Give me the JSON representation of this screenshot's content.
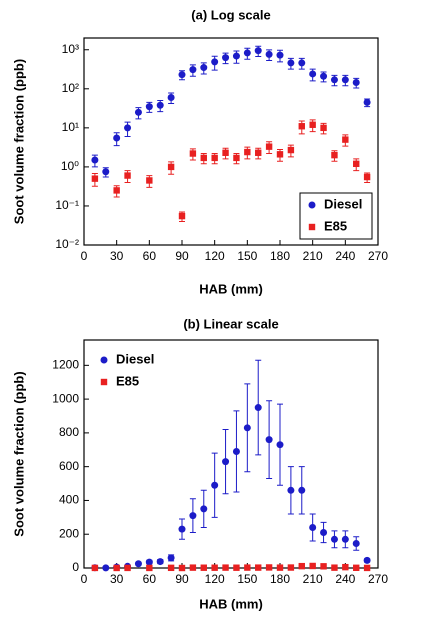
{
  "chart_data": [
    {
      "type": "scatter",
      "title": "(a) Log scale",
      "xlabel": "HAB (mm)",
      "ylabel": "Soot volume fraction (ppb)",
      "log_y": true,
      "legend": "lower right",
      "legend_box": true,
      "xlim": [
        0,
        270
      ],
      "xticks": [
        0,
        30,
        60,
        90,
        120,
        150,
        180,
        210,
        240,
        270
      ],
      "ylim": [
        0.01,
        2000
      ],
      "yticks": [
        {
          "value": 0.01,
          "label": "10⁻²"
        },
        {
          "value": 0.1,
          "label": "10⁻¹"
        },
        {
          "value": 1,
          "label": "10⁰"
        },
        {
          "value": 10,
          "label": "10¹"
        },
        {
          "value": 100,
          "label": "10²"
        },
        {
          "value": 1000,
          "label": "10³"
        }
      ],
      "series": [
        {
          "name": "Diesel",
          "color": "#1c1cc8",
          "marker": "circle",
          "x": [
            10,
            20,
            30,
            40,
            50,
            60,
            70,
            80,
            90,
            100,
            110,
            120,
            130,
            140,
            150,
            160,
            170,
            180,
            190,
            200,
            210,
            220,
            230,
            240,
            250,
            260
          ],
          "values": [
            1.5,
            0.75,
            5.5,
            10,
            25,
            35,
            38,
            60,
            230,
            310,
            350,
            490,
            630,
            690,
            830,
            950,
            760,
            730,
            460,
            460,
            240,
            210,
            170,
            170,
            145,
            45
          ],
          "errors": [
            0.5,
            0.2,
            2,
            4,
            8,
            10,
            12,
            18,
            60,
            100,
            110,
            190,
            190,
            240,
            260,
            280,
            230,
            240,
            140,
            140,
            80,
            60,
            50,
            50,
            40,
            10
          ]
        },
        {
          "name": "E85",
          "color": "#e82020",
          "marker": "square",
          "x": [
            10,
            30,
            40,
            60,
            80,
            90,
            100,
            110,
            120,
            130,
            140,
            150,
            160,
            170,
            180,
            190,
            200,
            210,
            220,
            230,
            240,
            250,
            260
          ],
          "values": [
            0.5,
            0.25,
            0.6,
            0.45,
            1.0,
            0.055,
            2.2,
            1.7,
            1.7,
            2.3,
            1.7,
            2.4,
            2.3,
            3.3,
            2.1,
            2.7,
            11,
            12,
            10,
            2,
            5,
            1.2,
            0.55
          ],
          "errors": [
            0.18,
            0.08,
            0.2,
            0.15,
            0.35,
            0.015,
            0.7,
            0.5,
            0.5,
            0.7,
            0.5,
            0.8,
            0.7,
            1.1,
            0.7,
            0.9,
            4,
            4,
            3,
            0.6,
            1.6,
            0.4,
            0.15
          ]
        }
      ]
    },
    {
      "type": "scatter",
      "title": "(b) Linear scale",
      "xlabel": "HAB (mm)",
      "ylabel": "Soot volume fraction (ppb)",
      "log_y": false,
      "legend": "upper left",
      "legend_box": false,
      "xlim": [
        0,
        270
      ],
      "xticks": [
        0,
        30,
        60,
        90,
        120,
        150,
        180,
        210,
        240,
        270
      ],
      "ylim": [
        0,
        1350
      ],
      "yticks": [
        0,
        200,
        400,
        600,
        800,
        1000,
        1200
      ],
      "series": [
        {
          "name": "Diesel",
          "color": "#1c1cc8",
          "marker": "circle",
          "x": [
            10,
            20,
            30,
            40,
            50,
            60,
            70,
            80,
            90,
            100,
            110,
            120,
            130,
            140,
            150,
            160,
            170,
            180,
            190,
            200,
            210,
            220,
            230,
            240,
            250,
            260
          ],
          "values": [
            1.5,
            0.75,
            5.5,
            10,
            25,
            35,
            38,
            60,
            230,
            310,
            350,
            490,
            630,
            690,
            830,
            950,
            760,
            730,
            460,
            460,
            240,
            210,
            170,
            170,
            145,
            45
          ],
          "errors": [
            0.5,
            0.2,
            2,
            4,
            8,
            10,
            12,
            18,
            60,
            100,
            110,
            190,
            190,
            240,
            260,
            280,
            230,
            240,
            140,
            140,
            80,
            60,
            50,
            50,
            40,
            10
          ]
        },
        {
          "name": "E85",
          "color": "#e82020",
          "marker": "square",
          "x": [
            10,
            30,
            40,
            60,
            80,
            90,
            100,
            110,
            120,
            130,
            140,
            150,
            160,
            170,
            180,
            190,
            200,
            210,
            220,
            230,
            240,
            250,
            260
          ],
          "values": [
            0.5,
            0.25,
            0.6,
            0.45,
            1.0,
            0.055,
            2.2,
            1.7,
            1.7,
            2.3,
            1.7,
            2.4,
            2.3,
            3.3,
            2.1,
            2.7,
            11,
            12,
            10,
            2,
            5,
            1.2,
            0.55
          ],
          "errors": [
            0.18,
            0.08,
            0.2,
            0.15,
            0.35,
            0.015,
            0.7,
            0.5,
            0.5,
            0.7,
            0.5,
            0.8,
            0.7,
            1.1,
            0.7,
            0.9,
            4,
            4,
            3,
            0.6,
            1.6,
            0.4,
            0.15
          ]
        }
      ]
    }
  ]
}
